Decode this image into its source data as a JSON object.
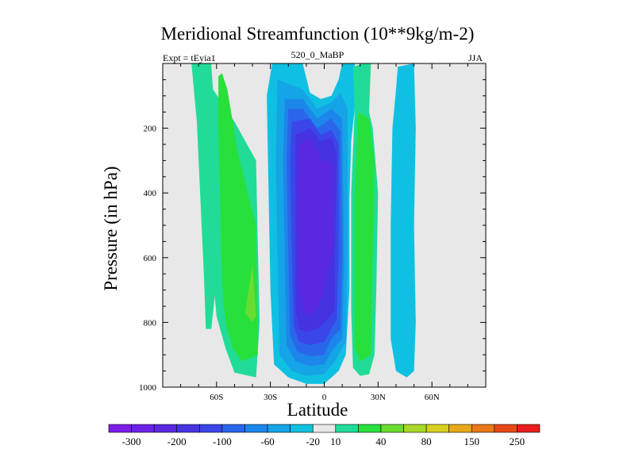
{
  "chart_data": {
    "type": "contour",
    "title": "Meridional Streamfunction (10**9kg/m-2)",
    "left_label": "Expt = tEyia1",
    "center_label": "520_0_MaBP",
    "right_label": "JJA",
    "xlabel": "Latitude",
    "ylabel": "Pressure (in hPa)",
    "xlim": [
      -90,
      90
    ],
    "ylim": [
      1000,
      0
    ],
    "x_ticks": [
      {
        "value": -60,
        "label": "60S"
      },
      {
        "value": -30,
        "label": "30S"
      },
      {
        "value": 0,
        "label": "0"
      },
      {
        "value": 30,
        "label": "30N"
      },
      {
        "value": 60,
        "label": "60N"
      }
    ],
    "y_ticks": [
      {
        "value": 200,
        "label": "200"
      },
      {
        "value": 400,
        "label": "400"
      },
      {
        "value": 600,
        "label": "600"
      },
      {
        "value": 800,
        "label": "800"
      },
      {
        "value": 1000,
        "label": "1000"
      }
    ],
    "colorbar": {
      "colors": [
        "#7d1ee6",
        "#6a22e6",
        "#5a28e0",
        "#4633e0",
        "#3a46e8",
        "#2a66ea",
        "#1d86ea",
        "#15a4e6",
        "#10c0e2",
        "#e8e8e8",
        "#20dc96",
        "#28e03c",
        "#6adc30",
        "#a8d828",
        "#d8d020",
        "#e8a818",
        "#e87818",
        "#e84818",
        "#e81e1e"
      ],
      "labels": [
        {
          "index": 1,
          "text": "-300"
        },
        {
          "index": 3,
          "text": "-200"
        },
        {
          "index": 5,
          "text": "-100"
        },
        {
          "index": 7,
          "text": "-60"
        },
        {
          "index": 9,
          "text": "-20"
        },
        {
          "index": 10,
          "text": "10"
        },
        {
          "index": 12,
          "text": "40"
        },
        {
          "index": 14,
          "text": "80"
        },
        {
          "index": 16,
          "text": "150"
        },
        {
          "index": 18,
          "text": "250"
        }
      ]
    },
    "regions": [
      {
        "name": "sh-cell-outer",
        "value": 10,
        "color": "#20dc96",
        "points": [
          [
            -74,
            0
          ],
          [
            -63,
            0
          ],
          [
            -62,
            80
          ],
          [
            -50,
            180
          ],
          [
            -38,
            300
          ],
          [
            -37,
            560
          ],
          [
            -36,
            800
          ],
          [
            -38,
            970
          ],
          [
            -50,
            955
          ],
          [
            -55,
            880
          ],
          [
            -60,
            780
          ],
          [
            -61,
            720
          ],
          [
            -63,
            820
          ],
          [
            -66,
            820
          ],
          [
            -67,
            660
          ],
          [
            -69,
            420
          ],
          [
            -71,
            180
          ]
        ]
      },
      {
        "name": "sh-cell-inner",
        "value": 40,
        "color": "#28e03c",
        "points": [
          [
            -57,
            30
          ],
          [
            -54,
            80
          ],
          [
            -48,
            280
          ],
          [
            -38,
            500
          ],
          [
            -37,
            900
          ],
          [
            -46,
            920
          ],
          [
            -51,
            880
          ],
          [
            -55,
            800
          ],
          [
            -57,
            680
          ],
          [
            -58,
            420
          ],
          [
            -59,
            200
          ],
          [
            -59,
            40
          ]
        ]
      },
      {
        "name": "sh-cell-core",
        "value": 80,
        "color": "#6adc30",
        "points": [
          [
            -40,
            620
          ],
          [
            -38,
            780
          ],
          [
            -40,
            800
          ],
          [
            -44,
            770
          ]
        ]
      },
      {
        "name": "eq-cell-1",
        "value": -20,
        "color": "#10c0e2",
        "points": [
          [
            -29,
            0
          ],
          [
            -12,
            0
          ],
          [
            -8,
            90
          ],
          [
            -2,
            110
          ],
          [
            4,
            100
          ],
          [
            8,
            50
          ],
          [
            10,
            0
          ],
          [
            17,
            0
          ],
          [
            17,
            140
          ],
          [
            15,
            240
          ],
          [
            14,
            420
          ],
          [
            14,
            700
          ],
          [
            12,
            900
          ],
          [
            8,
            950
          ],
          [
            0,
            990
          ],
          [
            -10,
            990
          ],
          [
            -20,
            970
          ],
          [
            -28,
            930
          ],
          [
            -30,
            700
          ],
          [
            -31,
            400
          ],
          [
            -32,
            100
          ]
        ]
      },
      {
        "name": "eq-cell-2",
        "value": -40,
        "color": "#15a4e6",
        "points": [
          [
            -26,
            50
          ],
          [
            -12,
            80
          ],
          [
            -4,
            140
          ],
          [
            4,
            120
          ],
          [
            9,
            90
          ],
          [
            13,
            140
          ],
          [
            13,
            600
          ],
          [
            12,
            860
          ],
          [
            6,
            920
          ],
          [
            0,
            960
          ],
          [
            -10,
            965
          ],
          [
            -18,
            950
          ],
          [
            -25,
            900
          ],
          [
            -26,
            600
          ],
          [
            -27,
            300
          ]
        ]
      },
      {
        "name": "eq-cell-3",
        "value": -60,
        "color": "#1d86ea",
        "points": [
          [
            -22,
            110
          ],
          [
            -12,
            110
          ],
          [
            -4,
            170
          ],
          [
            4,
            140
          ],
          [
            10,
            170
          ],
          [
            11,
            600
          ],
          [
            10,
            850
          ],
          [
            4,
            890
          ],
          [
            0,
            930
          ],
          [
            -8,
            935
          ],
          [
            -16,
            920
          ],
          [
            -21,
            870
          ],
          [
            -22,
            600
          ],
          [
            -23,
            300
          ]
        ]
      },
      {
        "name": "eq-cell-4",
        "value": -80,
        "color": "#2a66ea",
        "points": [
          [
            -20,
            140
          ],
          [
            -12,
            140
          ],
          [
            -4,
            200
          ],
          [
            4,
            170
          ],
          [
            9,
            210
          ],
          [
            10,
            600
          ],
          [
            9,
            820
          ],
          [
            4,
            850
          ],
          [
            0,
            900
          ],
          [
            -8,
            905
          ],
          [
            -15,
            890
          ],
          [
            -19,
            840
          ],
          [
            -20,
            600
          ],
          [
            -21,
            300
          ]
        ]
      },
      {
        "name": "eq-cell-5",
        "value": -100,
        "color": "#3a46e8",
        "points": [
          [
            -18,
            180
          ],
          [
            -8,
            170
          ],
          [
            -2,
            220
          ],
          [
            4,
            205
          ],
          [
            8,
            250
          ],
          [
            8,
            600
          ],
          [
            7,
            790
          ],
          [
            4,
            820
          ],
          [
            0,
            860
          ],
          [
            -8,
            870
          ],
          [
            -14,
            860
          ],
          [
            -17,
            810
          ],
          [
            -18,
            600
          ],
          [
            -19,
            300
          ]
        ]
      },
      {
        "name": "eq-cell-6",
        "value": -150,
        "color": "#4633e0",
        "points": [
          [
            -16,
            220
          ],
          [
            -8,
            200
          ],
          [
            -2,
            240
          ],
          [
            4,
            230
          ],
          [
            7,
            280
          ],
          [
            6,
            600
          ],
          [
            6,
            760
          ],
          [
            2,
            790
          ],
          [
            -4,
            820
          ],
          [
            -10,
            830
          ],
          [
            -14,
            820
          ],
          [
            -16,
            760
          ],
          [
            -16,
            500
          ]
        ]
      },
      {
        "name": "eq-cell-core",
        "value": -200,
        "color": "#5a28e0",
        "points": [
          [
            -14,
            250
          ],
          [
            -8,
            230
          ],
          [
            -4,
            270
          ],
          [
            0,
            310
          ],
          [
            2,
            290
          ],
          [
            5,
            320
          ],
          [
            5,
            560
          ],
          [
            0,
            700
          ],
          [
            -4,
            760
          ],
          [
            -8,
            780
          ],
          [
            -12,
            770
          ],
          [
            -14,
            700
          ],
          [
            -15,
            480
          ]
        ]
      },
      {
        "name": "nh-cell-outer",
        "value": 10,
        "color": "#20dc96",
        "points": [
          [
            16,
            10
          ],
          [
            22,
            0
          ],
          [
            26,
            0
          ],
          [
            25,
            150
          ],
          [
            27,
            200
          ],
          [
            30,
            400
          ],
          [
            29,
            700
          ],
          [
            28,
            900
          ],
          [
            25,
            960
          ],
          [
            20,
            965
          ],
          [
            16,
            940
          ],
          [
            15,
            760
          ],
          [
            15,
            400
          ],
          [
            17,
            140
          ]
        ]
      },
      {
        "name": "nh-cell-inner",
        "value": 40,
        "color": "#28e03c",
        "points": [
          [
            19,
            150
          ],
          [
            25,
            170
          ],
          [
            28,
            300
          ],
          [
            27,
            600
          ],
          [
            26,
            900
          ],
          [
            20,
            920
          ],
          [
            17,
            880
          ],
          [
            17,
            700
          ],
          [
            17,
            400
          ]
        ]
      },
      {
        "name": "nh-far-cell",
        "value": -20,
        "color": "#10c0e2",
        "points": [
          [
            41,
            10
          ],
          [
            50,
            0
          ],
          [
            51,
            200
          ],
          [
            50,
            500
          ],
          [
            51,
            800
          ],
          [
            50,
            950
          ],
          [
            46,
            970
          ],
          [
            40,
            950
          ],
          [
            37,
            850
          ],
          [
            37,
            500
          ],
          [
            38,
            200
          ],
          [
            40,
            80
          ]
        ]
      }
    ]
  }
}
